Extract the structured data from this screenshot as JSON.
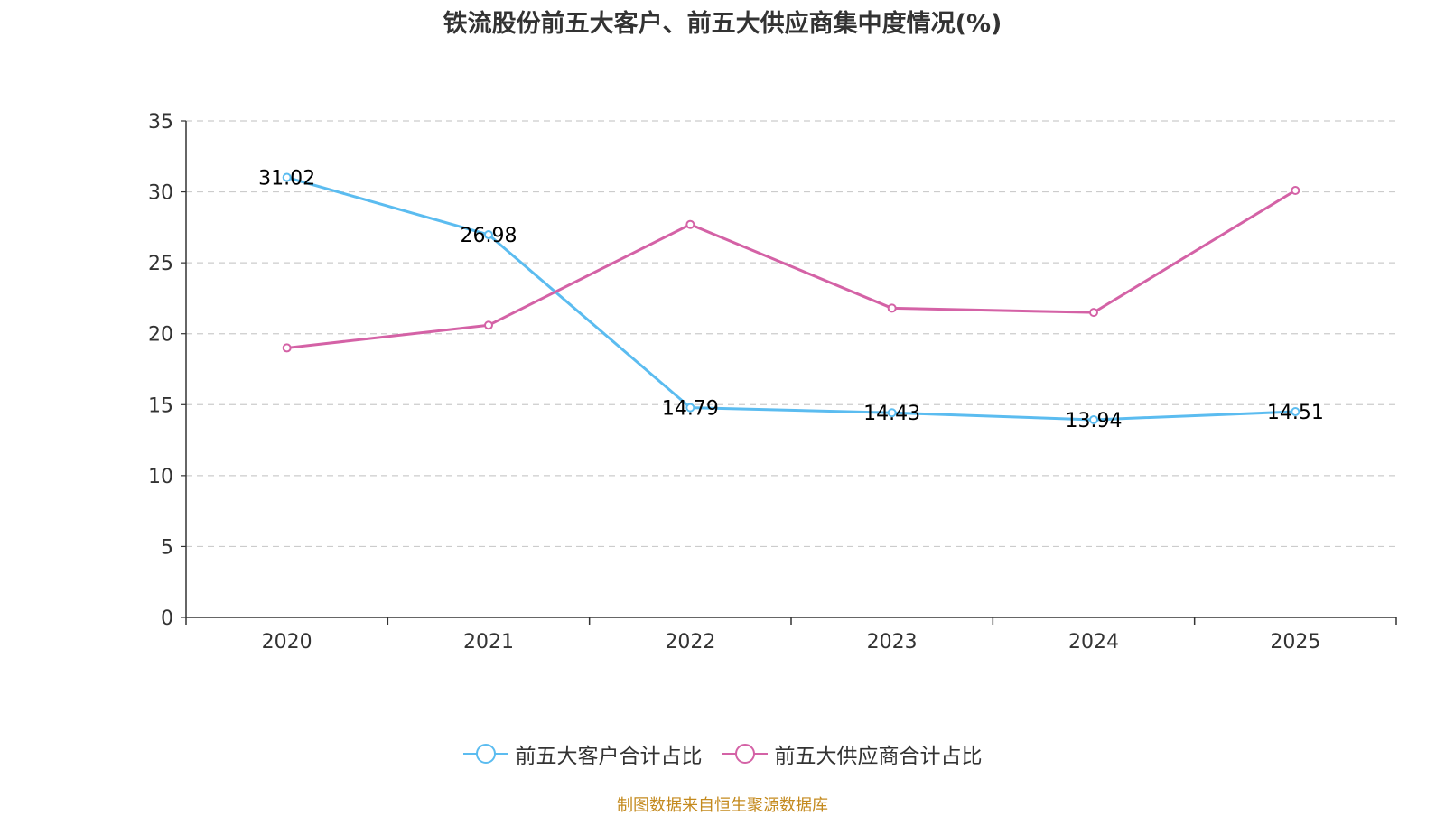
{
  "colors": {
    "customer": "#5bbcf0",
    "supplier": "#d462a6",
    "grid": "#cccccc",
    "axis": "#333333",
    "source": "#c48a1e"
  },
  "source_note": "制图数据来自恒生聚源数据库",
  "chart_data": {
    "type": "line",
    "title": "铁流股份前五大客户、前五大供应商集中度情况(%)",
    "xlabel": "",
    "ylabel": "",
    "categories": [
      "2020",
      "2021",
      "2022",
      "2023",
      "2024",
      "2025"
    ],
    "ylim": [
      0,
      35
    ],
    "yticks": [
      0,
      5,
      10,
      15,
      20,
      25,
      30,
      35
    ],
    "grid": true,
    "legend_position": "bottom-center",
    "series": [
      {
        "name": "前五大客户合计占比",
        "color_key": "customer",
        "values": [
          31.02,
          26.98,
          14.79,
          14.43,
          13.94,
          14.51
        ],
        "show_labels": true,
        "labels": [
          "31.02",
          "26.98",
          "14.79",
          "14.43",
          "13.94",
          "14.51"
        ]
      },
      {
        "name": "前五大供应商合计占比",
        "color_key": "supplier",
        "values": [
          19.0,
          20.6,
          27.7,
          21.8,
          21.5,
          30.1
        ],
        "show_labels": false
      }
    ]
  }
}
